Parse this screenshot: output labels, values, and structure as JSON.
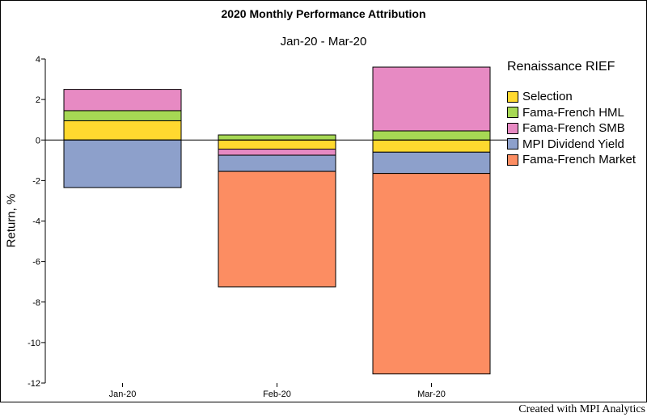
{
  "chart_data": {
    "type": "bar",
    "stacked": true,
    "title": "2020 Monthly Performance Attribution",
    "subtitle": "Jan-20 - Mar-20",
    "ylabel": "Return, %",
    "xlabel": "",
    "ylim": [
      -12,
      4
    ],
    "yticks": [
      4,
      2,
      0,
      -2,
      -4,
      -6,
      -8,
      -10,
      -12
    ],
    "categories": [
      "Jan-20",
      "Feb-20",
      "Mar-20"
    ],
    "legend_title": "Renaissance RIEF",
    "legend_position": "right",
    "series": [
      {
        "name": "Selection",
        "color": "#ffd92f",
        "values": [
          0.95,
          -0.45,
          -0.6
        ]
      },
      {
        "name": "Fama-French HML",
        "color": "#a6d854",
        "values": [
          0.5,
          0.25,
          0.45
        ]
      },
      {
        "name": "Fama-French SMB",
        "color": "#e78ac3",
        "values": [
          1.05,
          -0.3,
          3.15
        ]
      },
      {
        "name": "MPI Dividend Yield",
        "color": "#8da0cb",
        "values": [
          -2.35,
          -0.8,
          -1.05
        ]
      },
      {
        "name": "Fama-French Market",
        "color": "#fc8d62",
        "values": [
          0,
          -5.7,
          -9.9
        ]
      }
    ]
  },
  "footer": {
    "credit": "Created with MPI Analytics"
  }
}
